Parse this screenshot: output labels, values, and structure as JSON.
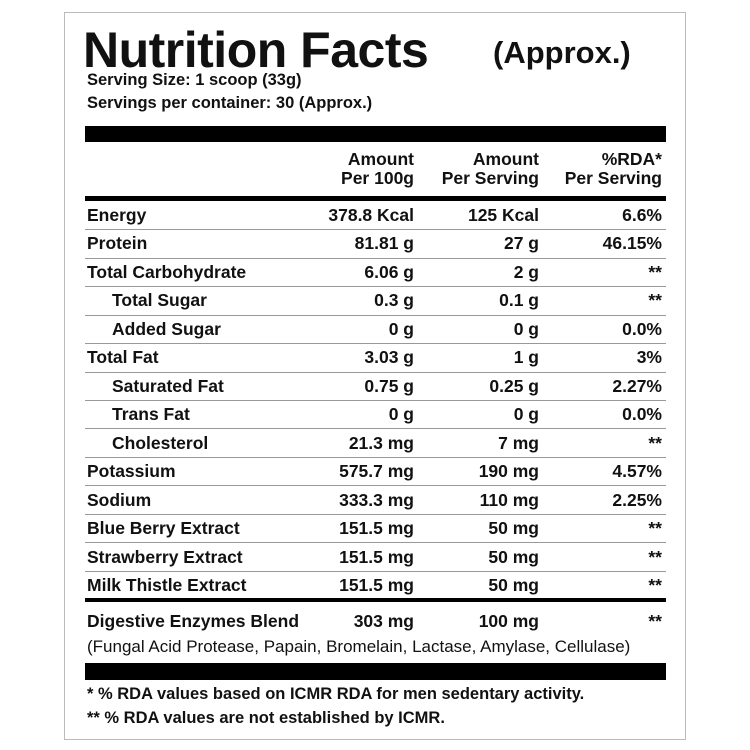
{
  "header": {
    "title": "Nutrition Facts",
    "title_note": "(Approx.)",
    "serving_size": "Serving Size: 1 scoop (33g)",
    "servings": "Servings per container: 30 (Approx.)"
  },
  "table": {
    "columns": [
      [
        "Amount",
        "Per 100g"
      ],
      [
        "Amount",
        "Per Serving"
      ],
      [
        "%RDA*",
        "Per Serving"
      ]
    ],
    "rows": [
      {
        "label": "Energy",
        "indent": false,
        "values": [
          "378.8 Kcal",
          "125 Kcal",
          "6.6%"
        ]
      },
      {
        "label": "Protein",
        "indent": false,
        "values": [
          "81.81 g",
          "27 g",
          "46.15%"
        ]
      },
      {
        "label": "Total Carbohydrate",
        "indent": false,
        "values": [
          "6.06 g",
          "2 g",
          "**"
        ]
      },
      {
        "label": "Total Sugar",
        "indent": true,
        "values": [
          "0.3 g",
          "0.1 g",
          "**"
        ]
      },
      {
        "label": "Added Sugar",
        "indent": true,
        "values": [
          "0 g",
          "0 g",
          "0.0%"
        ]
      },
      {
        "label": "Total Fat",
        "indent": false,
        "values": [
          "3.03 g",
          "1 g",
          "3%"
        ]
      },
      {
        "label": "Saturated Fat",
        "indent": true,
        "values": [
          "0.75 g",
          "0.25 g",
          "2.27%"
        ]
      },
      {
        "label": "Trans Fat",
        "indent": true,
        "values": [
          "0 g",
          "0 g",
          "0.0%"
        ]
      },
      {
        "label": "Cholesterol",
        "indent": true,
        "values": [
          "21.3 mg",
          "7 mg",
          "**"
        ]
      },
      {
        "label": "Potassium",
        "indent": false,
        "values": [
          "575.7 mg",
          "190 mg",
          "4.57%"
        ]
      },
      {
        "label": "Sodium",
        "indent": false,
        "values": [
          "333.3 mg",
          "110 mg",
          "2.25%"
        ]
      },
      {
        "label": "Blue Berry Extract",
        "indent": false,
        "values": [
          "151.5 mg",
          "50 mg",
          "**"
        ]
      },
      {
        "label": "Strawberry Extract",
        "indent": false,
        "values": [
          "151.5 mg",
          "50 mg",
          "**"
        ]
      },
      {
        "label": "Milk Thistle Extract",
        "indent": false,
        "values": [
          "151.5 mg",
          "50 mg",
          "**"
        ]
      }
    ],
    "blend": {
      "label": "Digestive Enzymes Blend",
      "values": [
        "303 mg",
        "100 mg",
        "**"
      ],
      "note": "(Fungal Acid Protease, Papain, Bromelain, Lactase, Amylase, Cellulase)"
    }
  },
  "footnotes": [
    "* % RDA values based on ICMR RDA for men sedentary activity.",
    "** % RDA values are not established by ICMR."
  ]
}
